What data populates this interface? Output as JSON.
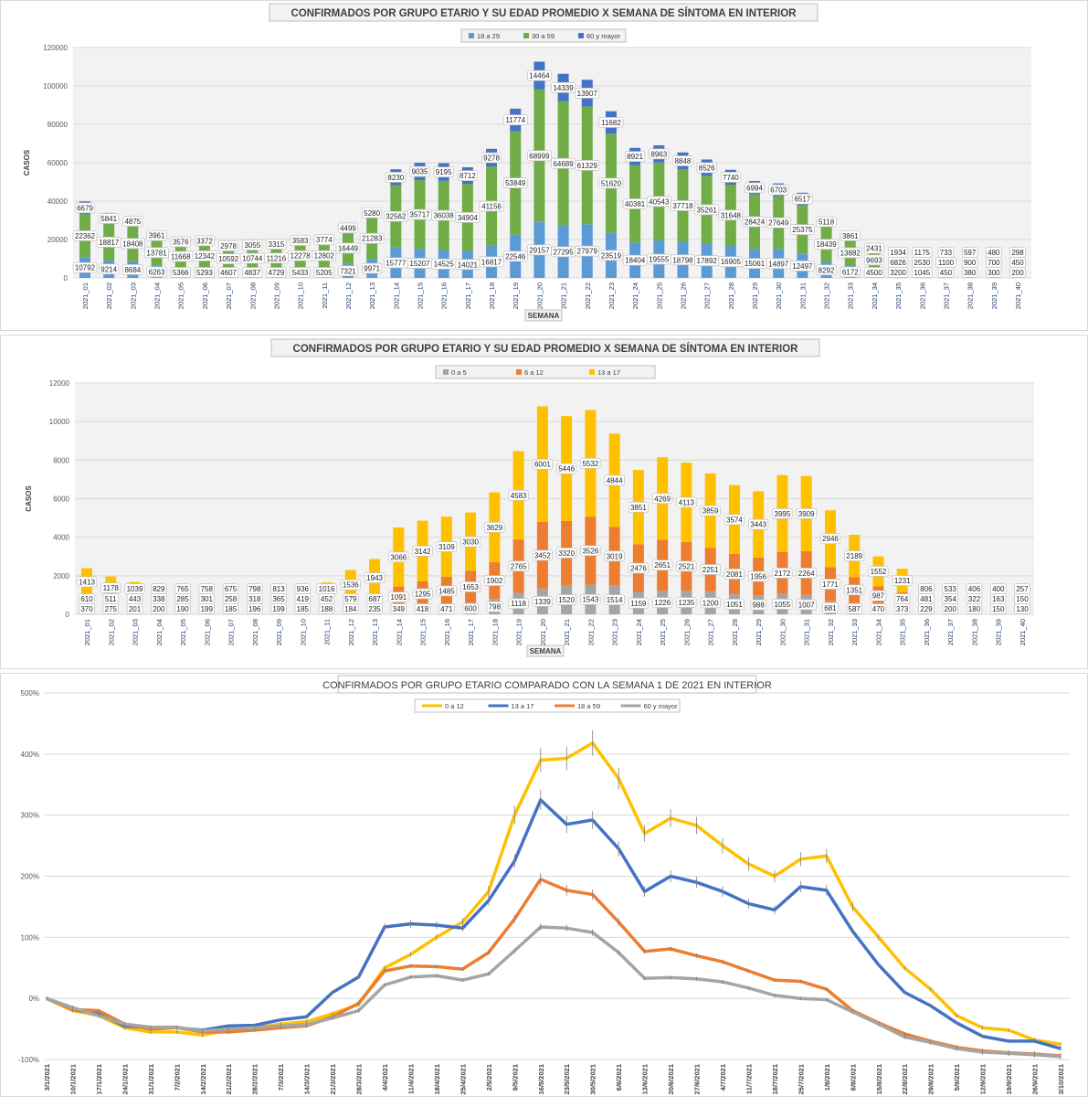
{
  "chart_data": [
    {
      "type": "bar",
      "stacked": true,
      "title": "CONFIRMADOS POR GRUPO ETARIO Y SU EDAD PROMEDIO X SEMANA DE SÍNTOMA EN INTERIOR",
      "xlabel": "SEMANA",
      "ylabel": "CASOS",
      "ylim": [
        0,
        120000
      ],
      "yticks": [
        0,
        20000,
        40000,
        60000,
        80000,
        100000,
        120000
      ],
      "grid": true,
      "legend": "top-center",
      "categories": [
        "2021_01",
        "2021_02",
        "2021_03",
        "2021_04",
        "2021_05",
        "2021_06",
        "2021_07",
        "2021_08",
        "2021_09",
        "2021_10",
        "2021_11",
        "2021_12",
        "2021_13",
        "2021_14",
        "2021_15",
        "2021_16",
        "2021_17",
        "2021_18",
        "2021_19",
        "2021_20",
        "2021_21",
        "2021_22",
        "2021_23",
        "2021_24",
        "2021_25",
        "2021_26",
        "2021_27",
        "2021_28",
        "2021_29",
        "2021_30",
        "2021_31",
        "2021_32",
        "2021_33",
        "2021_34",
        "2021_35",
        "2021_36",
        "2021_37",
        "2021_38",
        "2021_39",
        "2021_40"
      ],
      "series": [
        {
          "name": "18 a 29",
          "color": "#5b9bd5",
          "values": [
            10792,
            9214,
            8684,
            6263,
            5366,
            5293,
            4607,
            4837,
            4729,
            5433,
            5205,
            7321,
            9971,
            15777,
            15207,
            14525,
            14021,
            16817,
            22546,
            29157,
            27295,
            27979,
            23519,
            18404,
            19555,
            18798,
            17892,
            16905,
            15061,
            14897,
            12497,
            8292,
            6172,
            4500,
            3200,
            1045,
            450,
            380,
            300,
            200
          ]
        },
        {
          "name": "30 a 59",
          "color": "#70ad47",
          "values": [
            22362,
            18817,
            18408,
            13781,
            11668,
            12342,
            10592,
            10744,
            11216,
            12278,
            12802,
            16449,
            21283,
            32562,
            35717,
            36038,
            34904,
            41156,
            53849,
            68999,
            64689,
            61329,
            51620,
            40381,
            40543,
            37718,
            35261,
            31648,
            28424,
            27649,
            25375,
            18439,
            13882,
            9693,
            6826,
            2530,
            1100,
            900,
            700,
            450
          ]
        },
        {
          "name": "60 y mayor",
          "color": "#4472c4",
          "values": [
            6679,
            5841,
            4875,
            3961,
            3576,
            3372,
            2978,
            3055,
            3315,
            3583,
            3774,
            4499,
            5280,
            8230,
            9035,
            9195,
            8712,
            9278,
            11774,
            14464,
            14339,
            13907,
            11682,
            8921,
            8963,
            8848,
            8526,
            7740,
            6994,
            6703,
            6517,
            5118,
            3861,
            2431,
            1934,
            1175,
            733,
            597,
            480,
            298
          ]
        }
      ]
    },
    {
      "type": "bar",
      "stacked": true,
      "title": "CONFIRMADOS POR GRUPO ETARIO Y SU EDAD PROMEDIO X SEMANA DE SÍNTOMA EN INTERIOR",
      "xlabel": "SEMANA",
      "ylabel": "CASOS",
      "ylim": [
        0,
        12000
      ],
      "yticks": [
        0,
        2000,
        4000,
        6000,
        8000,
        10000,
        12000
      ],
      "grid": true,
      "legend": "top-center",
      "categories": [
        "2021_01",
        "2021_02",
        "2021_03",
        "2021_04",
        "2021_05",
        "2021_06",
        "2021_07",
        "2021_08",
        "2021_09",
        "2021_10",
        "2021_11",
        "2021_12",
        "2021_13",
        "2021_14",
        "2021_15",
        "2021_16",
        "2021_17",
        "2021_18",
        "2021_19",
        "2021_20",
        "2021_21",
        "2021_22",
        "2021_23",
        "2021_24",
        "2021_25",
        "2021_26",
        "2021_27",
        "2021_28",
        "2021_29",
        "2021_30",
        "2021_31",
        "2021_32",
        "2021_33",
        "2021_34",
        "2021_35",
        "2021_36",
        "2021_37",
        "2021_38",
        "2021_39",
        "2021_40"
      ],
      "series": [
        {
          "name": "0 a 5",
          "color": "#a5a5a5",
          "values": [
            370,
            275,
            201,
            200,
            190,
            199,
            185,
            196,
            199,
            185,
            188,
            184,
            235,
            349,
            418,
            471,
            600,
            798,
            1118,
            1339,
            1520,
            1543,
            1514,
            1159,
            1226,
            1235,
            1200,
            1051,
            988,
            1055,
            1007,
            681,
            587,
            470,
            373,
            229,
            200,
            180,
            150,
            130
          ]
        },
        {
          "name": "6 a 12",
          "color": "#ed7d31",
          "values": [
            610,
            511,
            443,
            338,
            285,
            301,
            258,
            318,
            365,
            419,
            452,
            579,
            687,
            1091,
            1295,
            1485,
            1653,
            1902,
            2765,
            3452,
            3320,
            3526,
            3019,
            2476,
            2651,
            2521,
            2251,
            2081,
            1956,
            2172,
            2264,
            1771,
            1351,
            987,
            764,
            481,
            354,
            322,
            163,
            150
          ]
        },
        {
          "name": "13 a 17",
          "color": "#ffc000",
          "values": [
            1413,
            1178,
            1039,
            829,
            765,
            758,
            675,
            798,
            813,
            936,
            1016,
            1536,
            1943,
            3066,
            3142,
            3109,
            3030,
            3629,
            4583,
            6001,
            5446,
            5532,
            4844,
            3851,
            4269,
            4113,
            3859,
            3574,
            3443,
            3995,
            3909,
            2946,
            2189,
            1552,
            1231,
            806,
            533,
            406,
            400,
            257
          ]
        }
      ]
    },
    {
      "type": "line",
      "title": "CONFIRMADOS POR GRUPO ETARIO COMPARADO CON LA SEMANA 1 DE 2021 EN INTERIOR",
      "xlabel": "",
      "ylabel": "",
      "ylim": [
        -100,
        500
      ],
      "yticks": [
        -100,
        0,
        100,
        200,
        300,
        400,
        500
      ],
      "ytick_suffix": "%",
      "grid": true,
      "legend": "top-center",
      "categories": [
        "3/1/2021",
        "10/1/2021",
        "17/1/2021",
        "24/1/2021",
        "31/1/2021",
        "7/2/2021",
        "14/2/2021",
        "21/2/2021",
        "28/2/2021",
        "7/3/2021",
        "14/3/2021",
        "21/3/2021",
        "28/3/2021",
        "4/4/2021",
        "11/4/2021",
        "18/4/2021",
        "25/4/2021",
        "2/5/2021",
        "9/5/2021",
        "16/5/2021",
        "23/5/2021",
        "30/5/2021",
        "6/6/2021",
        "13/6/2021",
        "20/6/2021",
        "27/6/2021",
        "4/7/2021",
        "11/7/2021",
        "18/7/2021",
        "25/7/2021",
        "1/8/2021",
        "8/8/2021",
        "15/8/2021",
        "22/8/2021",
        "29/8/2021",
        "5/9/2021",
        "12/9/2021",
        "19/9/2021",
        "26/9/2021",
        "3/10/2021"
      ],
      "series": [
        {
          "name": "0 a 12",
          "color": "#ffc000",
          "values": [
            0,
            -20,
            -28,
            -48,
            -55,
            -55,
            -60,
            -52,
            -48,
            -42,
            -38,
            -25,
            -10,
            50,
            72,
            100,
            125,
            175,
            300,
            390,
            393,
            418,
            360,
            270,
            295,
            283,
            250,
            220,
            200,
            228,
            233,
            150,
            100,
            50,
            15,
            -28,
            -48,
            -52,
            -68,
            -75
          ]
        },
        {
          "name": "13 a 17",
          "color": "#4472c4",
          "values": [
            0,
            -18,
            -25,
            -45,
            -48,
            -48,
            -52,
            -45,
            -44,
            -35,
            -30,
            10,
            35,
            117,
            122,
            120,
            115,
            160,
            225,
            325,
            285,
            292,
            245,
            175,
            200,
            190,
            175,
            155,
            145,
            183,
            177,
            110,
            55,
            10,
            -12,
            -40,
            -62,
            -70,
            -70,
            -82
          ]
        },
        {
          "name": "18 a 59",
          "color": "#ed7d31",
          "values": [
            0,
            -18,
            -20,
            -42,
            -50,
            -48,
            -55,
            -55,
            -52,
            -48,
            -45,
            -30,
            -8,
            45,
            53,
            52,
            48,
            75,
            130,
            195,
            177,
            170,
            125,
            77,
            81,
            70,
            60,
            45,
            30,
            28,
            15,
            -20,
            -40,
            -58,
            -70,
            -80,
            -86,
            -89,
            -91,
            -94
          ]
        },
        {
          "name": "60 y mayor",
          "color": "#a5a5a5",
          "values": [
            0,
            -15,
            -28,
            -42,
            -47,
            -47,
            -53,
            -50,
            -48,
            -45,
            -43,
            -32,
            -20,
            22,
            35,
            37,
            30,
            40,
            78,
            117,
            115,
            108,
            75,
            33,
            34,
            32,
            27,
            17,
            5,
            0,
            -2,
            -22,
            -42,
            -63,
            -72,
            -82,
            -88,
            -90,
            -92,
            -95
          ]
        }
      ]
    }
  ]
}
